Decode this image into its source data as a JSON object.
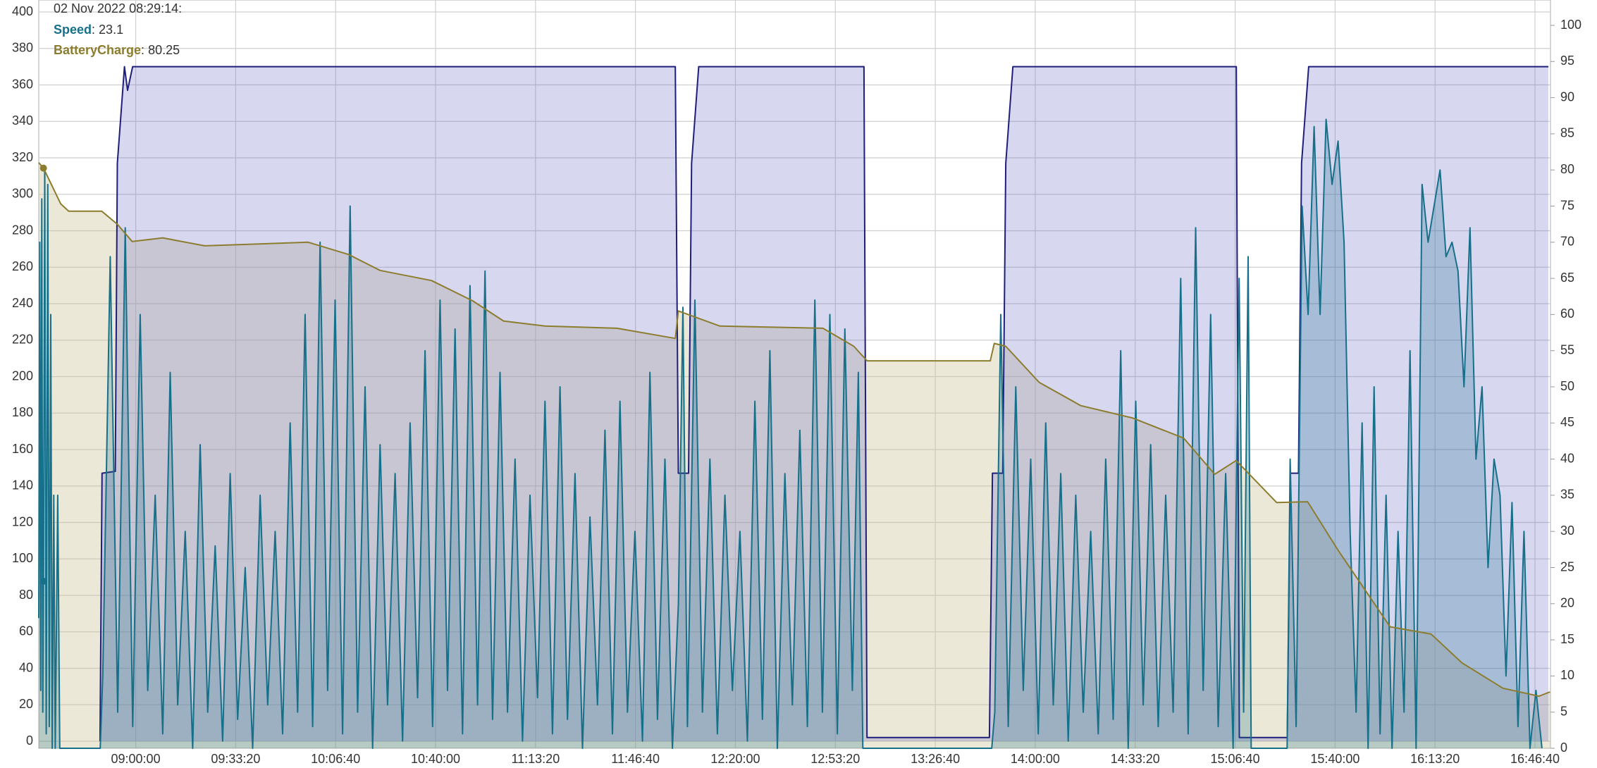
{
  "chart_data": {
    "type": "line",
    "hover": {
      "label": "02 Nov 2022 08:29:14:",
      "separator": ": "
    },
    "xlim": [
      "08:27:40",
      "16:51:50"
    ],
    "xticks": [
      "09:00:00",
      "09:33:20",
      "10:06:40",
      "10:40:00",
      "11:13:20",
      "11:46:40",
      "12:20:00",
      "12:53:20",
      "13:26:40",
      "14:00:00",
      "14:33:20",
      "15:06:40",
      "15:40:00",
      "16:13:20",
      "16:46:40"
    ],
    "ylim": [
      0,
      400
    ],
    "yticks": [
      0,
      20,
      40,
      60,
      80,
      100,
      120,
      140,
      160,
      180,
      200,
      220,
      240,
      260,
      280,
      300,
      320,
      340,
      360,
      380,
      400
    ],
    "y2lim": [
      0,
      100
    ],
    "y2ticks": [
      0,
      5,
      10,
      15,
      20,
      25,
      30,
      35,
      40,
      45,
      50,
      55,
      60,
      65,
      70,
      75,
      80,
      85,
      90,
      95,
      100
    ],
    "grid": true,
    "series": [
      {
        "color": "#1f1f7a",
        "fill": "rgba(110,110,200,0.28)",
        "x": [
          "08:48:06",
          "08:48:47",
          "08:53:12",
          "08:53:53",
          "08:56:15",
          "08:57:17",
          "08:58:59",
          "11:59:57",
          "12:00:58",
          "12:04:22",
          "12:05:23",
          "12:07:46",
          "13:02:53",
          "13:03:54",
          "13:44:43",
          "13:45:44",
          "13:49:09",
          "13:50:10",
          "13:52:33",
          "15:07:03",
          "15:08:04",
          "15:24:03",
          "15:25:04",
          "15:27:47",
          "15:28:49",
          "15:31:12",
          "16:51:08"
        ],
        "values": [
          0,
          147,
          148,
          317,
          370,
          357,
          370,
          370,
          147,
          147,
          317,
          370,
          370,
          2,
          2,
          147,
          147,
          317,
          370,
          370,
          2,
          2,
          147,
          147,
          317,
          370,
          370
        ]
      },
      {
        "name": "Speed",
        "color": "#17708a",
        "fill": "rgba(23,112,138,0.25)",
        "axis": "y2",
        "x": [
          "08:27:40",
          "08:28:00",
          "08:28:20",
          "08:28:40",
          "08:29:00",
          "08:29:14",
          "08:29:40",
          "08:30:10",
          "08:30:40",
          "08:31:10",
          "08:31:40",
          "08:32:10",
          "08:32:40",
          "08:33:10",
          "08:34:00",
          "08:34:40",
          "08:35:30",
          "08:48:10",
          "08:49:00",
          "08:51:30",
          "08:54:00",
          "08:56:30",
          "08:59:00",
          "09:01:30",
          "09:04:00",
          "09:06:30",
          "09:09:00",
          "09:11:30",
          "09:14:00",
          "09:16:30",
          "09:19:00",
          "09:21:30",
          "09:24:00",
          "09:26:30",
          "09:29:00",
          "09:31:30",
          "09:34:00",
          "09:36:30",
          "09:39:00",
          "09:41:30",
          "09:44:00",
          "09:46:30",
          "09:49:00",
          "09:51:30",
          "09:54:00",
          "09:56:30",
          "09:59:00",
          "10:01:30",
          "10:04:00",
          "10:06:30",
          "10:09:00",
          "10:11:30",
          "10:14:00",
          "10:16:30",
          "10:19:00",
          "10:21:30",
          "10:24:00",
          "10:26:30",
          "10:29:00",
          "10:31:30",
          "10:34:00",
          "10:36:30",
          "10:39:00",
          "10:41:30",
          "10:44:00",
          "10:46:30",
          "10:49:00",
          "10:51:30",
          "10:54:00",
          "10:56:30",
          "10:59:00",
          "11:01:30",
          "11:04:00",
          "11:06:30",
          "11:09:00",
          "11:11:30",
          "11:14:00",
          "11:16:30",
          "11:19:00",
          "11:21:30",
          "11:24:00",
          "11:26:30",
          "11:29:00",
          "11:31:30",
          "11:34:00",
          "11:36:30",
          "11:39:00",
          "11:41:30",
          "11:44:00",
          "11:46:30",
          "11:49:00",
          "11:51:30",
          "11:54:00",
          "11:56:30",
          "11:59:00",
          "12:01:00",
          "12:02:30",
          "12:04:00",
          "12:06:30",
          "12:09:00",
          "12:11:30",
          "12:14:00",
          "12:16:30",
          "12:19:00",
          "12:21:30",
          "12:24:00",
          "12:26:30",
          "12:29:00",
          "12:31:30",
          "12:34:00",
          "12:36:30",
          "12:39:00",
          "12:41:30",
          "12:44:00",
          "12:46:30",
          "12:49:00",
          "12:51:30",
          "12:54:00",
          "12:56:30",
          "12:59:00",
          "13:01:00",
          "13:02:30",
          "13:45:30",
          "13:46:30",
          "13:48:30",
          "13:51:00",
          "13:53:30",
          "13:56:00",
          "13:58:30",
          "14:01:00",
          "14:03:30",
          "14:06:00",
          "14:08:30",
          "14:11:00",
          "14:13:30",
          "14:16:00",
          "14:18:30",
          "14:21:00",
          "14:23:30",
          "14:26:00",
          "14:28:30",
          "14:31:00",
          "14:33:30",
          "14:36:00",
          "14:38:30",
          "14:41:00",
          "14:43:30",
          "14:46:00",
          "14:48:30",
          "14:51:00",
          "14:53:30",
          "14:56:00",
          "14:58:30",
          "15:01:00",
          "15:03:30",
          "15:06:00",
          "15:08:00",
          "15:09:30",
          "15:11:00",
          "15:12:00",
          "15:24:00",
          "15:25:00",
          "15:27:00",
          "15:29:00",
          "15:31:00",
          "15:33:00",
          "15:35:00",
          "15:37:00",
          "15:39:00",
          "15:41:00",
          "15:43:00",
          "15:45:00",
          "15:47:00",
          "15:49:00",
          "15:51:00",
          "15:53:00",
          "15:55:00",
          "15:57:00",
          "15:59:00",
          "16:01:00",
          "16:03:00",
          "16:05:00",
          "16:07:00",
          "16:09:00",
          "16:11:00",
          "16:13:00",
          "16:15:00",
          "16:17:00",
          "16:19:00",
          "16:21:00",
          "16:23:00",
          "16:25:00",
          "16:27:00",
          "16:29:00",
          "16:31:00",
          "16:33:00",
          "16:35:00",
          "16:37:00",
          "16:39:00",
          "16:41:00",
          "16:43:00",
          "16:45:00",
          "16:47:00",
          "16:49:00"
        ],
        "values": [
          18,
          70,
          8,
          76,
          5,
          23.1,
          80,
          2,
          78,
          3,
          60,
          0,
          35,
          0,
          35,
          0,
          0,
          0,
          10,
          68,
          5,
          72,
          3,
          60,
          8,
          35,
          2,
          52,
          6,
          30,
          0,
          42,
          5,
          28,
          1,
          38,
          4,
          25,
          0,
          35,
          6,
          30,
          2,
          45,
          5,
          60,
          3,
          70,
          8,
          62,
          2,
          75,
          5,
          50,
          0,
          42,
          6,
          38,
          1,
          45,
          7,
          55,
          3,
          62,
          8,
          58,
          2,
          64,
          6,
          66,
          4,
          52,
          5,
          40,
          1,
          35,
          7,
          48,
          2,
          50,
          4,
          38,
          0,
          32,
          6,
          44,
          2,
          48,
          5,
          30,
          1,
          52,
          4,
          40,
          0,
          20,
          61,
          3,
          62,
          5,
          40,
          2,
          35,
          8,
          30,
          1,
          48,
          4,
          55,
          0,
          38,
          6,
          44,
          3,
          62,
          5,
          60,
          2,
          58,
          8,
          52,
          0,
          0,
          5,
          60,
          3,
          50,
          8,
          40,
          2,
          45,
          6,
          38,
          1,
          35,
          5,
          30,
          2,
          40,
          4,
          55,
          0,
          48,
          6,
          42,
          3,
          35,
          5,
          65,
          2,
          72,
          8,
          60,
          3,
          38,
          0,
          65,
          5,
          68,
          0,
          0,
          40,
          3,
          75,
          60,
          86,
          60,
          87,
          78,
          84,
          70,
          30,
          5,
          45,
          0,
          50,
          2,
          35,
          0,
          30,
          5,
          55,
          0,
          78,
          70,
          75,
          80,
          68,
          70,
          66,
          50,
          72,
          40,
          50,
          25,
          40,
          35,
          10,
          34,
          3,
          30,
          0,
          8,
          0
        ]
      },
      {
        "name": "BatteryCharge",
        "color": "#8c7d2e",
        "fill": "rgba(205,195,150,0.38)",
        "axis": "y2",
        "x": [
          "08:27:40",
          "08:29:14",
          "08:35:00",
          "08:37:40",
          "08:48:40",
          "08:53:50",
          "08:58:50",
          "09:09:00",
          "09:23:00",
          "09:57:30",
          "10:11:00",
          "10:21:30",
          "10:38:40",
          "10:52:20",
          "11:02:40",
          "11:16:30",
          "11:40:30",
          "11:59:57",
          "12:00:58",
          "12:14:50",
          "12:49:10",
          "12:59:30",
          "13:03:54",
          "13:45:00",
          "13:46:20",
          "13:50:10",
          "14:01:20",
          "14:15:10",
          "14:32:20",
          "14:49:30",
          "14:59:50",
          "15:07:00",
          "15:20:30",
          "15:30:50",
          "15:41:00",
          "15:58:20",
          "16:12:00",
          "16:22:20",
          "16:36:00",
          "16:48:00",
          "16:51:40"
        ],
        "values": [
          81,
          80.25,
          75.3,
          74.3,
          74.3,
          72.5,
          70.1,
          70.6,
          69.5,
          70,
          68.3,
          66.1,
          64.7,
          61.9,
          59.1,
          58.4,
          58.1,
          56.7,
          60.5,
          58.4,
          58.1,
          55.6,
          53.6,
          53.6,
          56,
          55.6,
          50.6,
          47.4,
          45.7,
          42.9,
          37.9,
          39.8,
          34,
          34.1,
          27.4,
          16.8,
          15.8,
          11.8,
          8.3,
          7.2,
          7.8
        ]
      }
    ]
  }
}
